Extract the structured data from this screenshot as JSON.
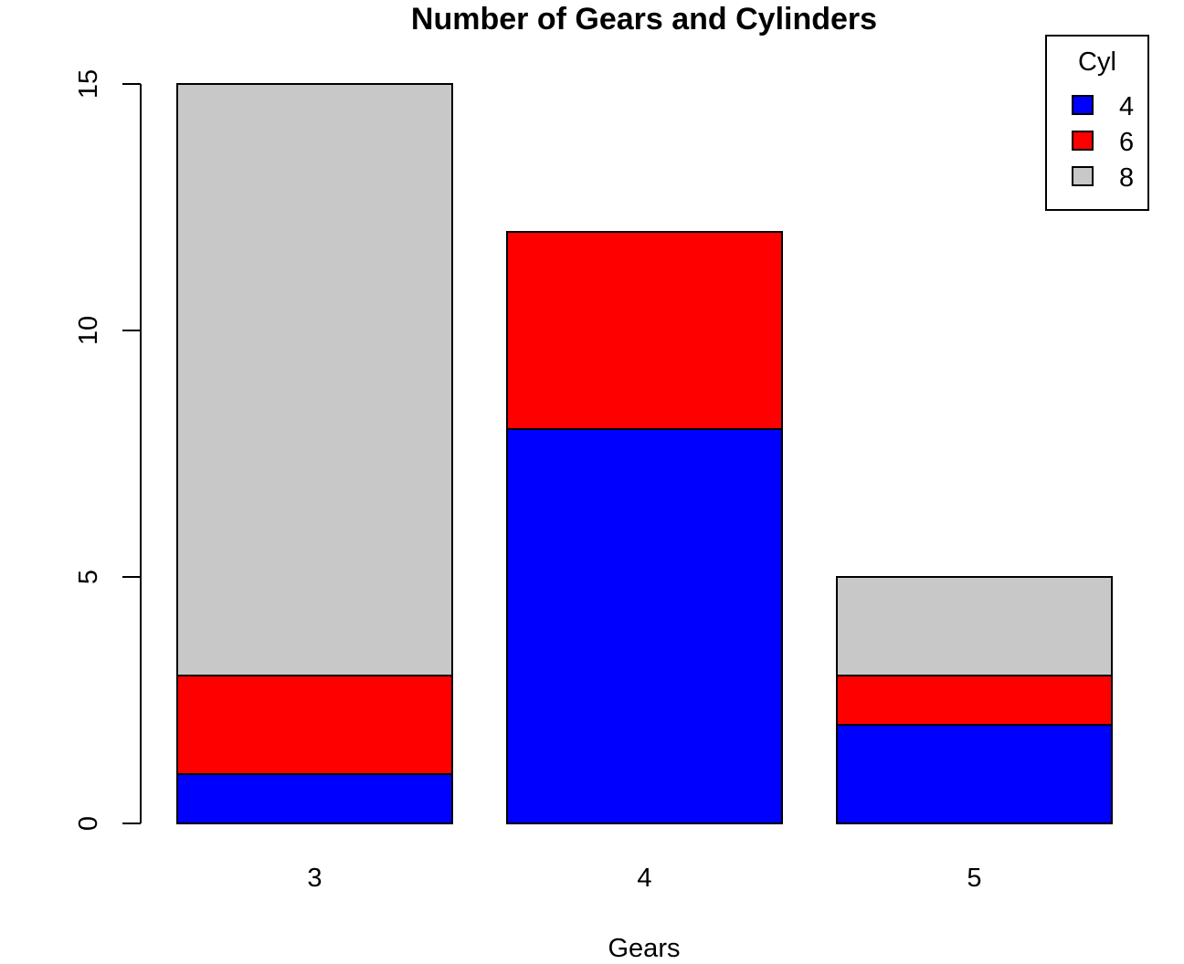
{
  "chart_data": {
    "type": "bar",
    "stacked": true,
    "title": "Number of Gears and Cylinders",
    "xlabel": "Gears",
    "ylabel": "",
    "categories": [
      "3",
      "4",
      "5"
    ],
    "ylim": [
      0,
      15
    ],
    "yticks": [
      "0",
      "5",
      "10",
      "15"
    ],
    "series": [
      {
        "name": "4",
        "values": [
          1,
          8,
          2
        ],
        "color": "#0000FF"
      },
      {
        "name": "6",
        "values": [
          2,
          4,
          1
        ],
        "color": "#FF0000"
      },
      {
        "name": "8",
        "values": [
          12,
          0,
          2
        ],
        "color": "#C8C8C8"
      }
    ],
    "legend": {
      "title": "Cyl",
      "position": "top-right"
    },
    "grid": false
  }
}
